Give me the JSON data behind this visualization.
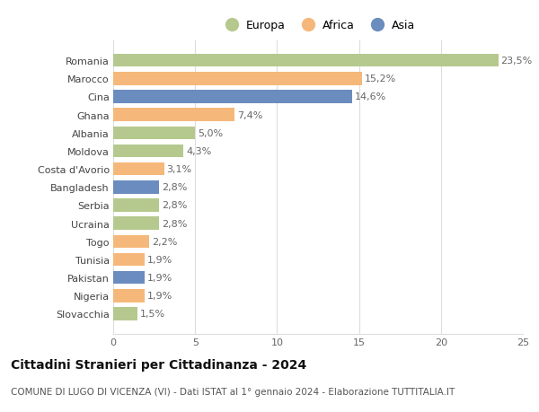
{
  "categories": [
    "Romania",
    "Marocco",
    "Cina",
    "Ghana",
    "Albania",
    "Moldova",
    "Costa d'Avorio",
    "Bangladesh",
    "Serbia",
    "Ucraina",
    "Togo",
    "Tunisia",
    "Pakistan",
    "Nigeria",
    "Slovacchia"
  ],
  "values": [
    23.5,
    15.2,
    14.6,
    7.4,
    5.0,
    4.3,
    3.1,
    2.8,
    2.8,
    2.8,
    2.2,
    1.9,
    1.9,
    1.9,
    1.5
  ],
  "labels": [
    "23,5%",
    "15,2%",
    "14,6%",
    "7,4%",
    "5,0%",
    "4,3%",
    "3,1%",
    "2,8%",
    "2,8%",
    "2,8%",
    "2,2%",
    "1,9%",
    "1,9%",
    "1,9%",
    "1,5%"
  ],
  "continent": [
    "Europa",
    "Africa",
    "Asia",
    "Africa",
    "Europa",
    "Europa",
    "Africa",
    "Asia",
    "Europa",
    "Europa",
    "Africa",
    "Africa",
    "Asia",
    "Africa",
    "Europa"
  ],
  "colors": {
    "Europa": "#b5c98e",
    "Africa": "#f5b87a",
    "Asia": "#6b8cbe"
  },
  "xlim": [
    0,
    25
  ],
  "xticks": [
    0,
    5,
    10,
    15,
    20,
    25
  ],
  "title": "Cittadini Stranieri per Cittadinanza - 2024",
  "subtitle": "COMUNE DI LUGO DI VICENZA (VI) - Dati ISTAT al 1° gennaio 2024 - Elaborazione TUTTITALIA.IT",
  "bg_color": "#ffffff",
  "grid_color": "#dddddd",
  "label_fontsize": 8,
  "tick_fontsize": 8,
  "ytick_fontsize": 8,
  "title_fontsize": 10,
  "subtitle_fontsize": 7.5,
  "bar_height": 0.72
}
